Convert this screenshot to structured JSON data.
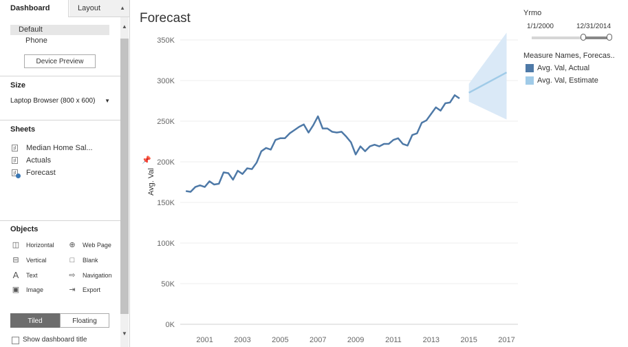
{
  "left_panel": {
    "tabs": {
      "dashboard": "Dashboard",
      "layout": "Layout"
    },
    "devices": [
      "Default",
      "Phone"
    ],
    "device_preview_button": "Device Preview",
    "size": {
      "title": "Size",
      "value": "Laptop Browser (800 x 600)"
    },
    "sheets": {
      "title": "Sheets",
      "items": [
        "Median Home Sal...",
        "Actuals",
        "Forecast"
      ]
    },
    "objects": {
      "title": "Objects",
      "items": [
        "Horizontal",
        "Web Page",
        "Vertical",
        "Blank",
        "Text",
        "Navigation",
        "Image",
        "Export"
      ]
    },
    "layout_toggle": {
      "tiled": "Tiled",
      "floating": "Floating"
    },
    "show_title_label": "Show dashboard title"
  },
  "filter": {
    "title": "Yrmo",
    "from": "1/1/2000",
    "to": "12/31/2014"
  },
  "legend": {
    "title": "Measure Names, Forecas..",
    "items": [
      {
        "label": "Avg. Val, Actual",
        "color": "#4e79a7"
      },
      {
        "label": "Avg. Val, Estimate",
        "color": "#a0cbe8"
      }
    ]
  },
  "chart_data": {
    "type": "line",
    "title": "Forecast",
    "ylabel": "Avg. Val",
    "ylim": [
      0,
      350000
    ],
    "xlim": [
      1999.7,
      2017.6
    ],
    "y_ticks": [
      "0K",
      "50K",
      "100K",
      "150K",
      "200K",
      "250K",
      "300K",
      "350K"
    ],
    "x_ticks": [
      "2001",
      "2003",
      "2005",
      "2007",
      "2009",
      "2011",
      "2013",
      "2015",
      "2017"
    ],
    "colors": {
      "actual": "#4e79a7",
      "estimate": "#a0cbe8",
      "band": "#dae9f7"
    },
    "series": [
      {
        "name": "Avg. Val, Actual",
        "x": [
          2000.0,
          2000.25,
          2000.5,
          2000.75,
          2001.0,
          2001.25,
          2001.5,
          2001.75,
          2002.0,
          2002.25,
          2002.5,
          2002.75,
          2003.0,
          2003.25,
          2003.5,
          2003.75,
          2004.0,
          2004.25,
          2004.5,
          2004.75,
          2005.0,
          2005.25,
          2005.5,
          2005.75,
          2006.0,
          2006.25,
          2006.5,
          2006.75,
          2007.0,
          2007.25,
          2007.5,
          2007.75,
          2008.0,
          2008.25,
          2008.5,
          2008.75,
          2009.0,
          2009.25,
          2009.5,
          2009.75,
          2010.0,
          2010.25,
          2010.5,
          2010.75,
          2011.0,
          2011.25,
          2011.5,
          2011.75,
          2012.0,
          2012.25,
          2012.5,
          2012.75,
          2013.0,
          2013.25,
          2013.5,
          2013.75,
          2014.0,
          2014.25,
          2014.5
        ],
        "values": [
          164000,
          163000,
          169000,
          171000,
          169000,
          176000,
          172000,
          173000,
          187000,
          186000,
          178000,
          189000,
          185000,
          192000,
          191000,
          199000,
          213000,
          217000,
          215000,
          227000,
          229000,
          229000,
          235000,
          239000,
          243000,
          246000,
          236000,
          245000,
          256000,
          241000,
          241000,
          237000,
          236000,
          237000,
          231000,
          224000,
          209000,
          219000,
          213000,
          219000,
          221000,
          219000,
          222000,
          222000,
          227000,
          229000,
          222000,
          220000,
          233000,
          235000,
          248000,
          251000,
          259000,
          267000,
          263000,
          272000,
          273000,
          282000,
          278000
        ]
      },
      {
        "name": "Avg. Val, Estimate",
        "x": [
          2015.0,
          2017.0
        ],
        "values": [
          285000,
          310000
        ],
        "upper": [
          296000,
          359000
        ],
        "lower": [
          274000,
          252000
        ]
      }
    ]
  }
}
